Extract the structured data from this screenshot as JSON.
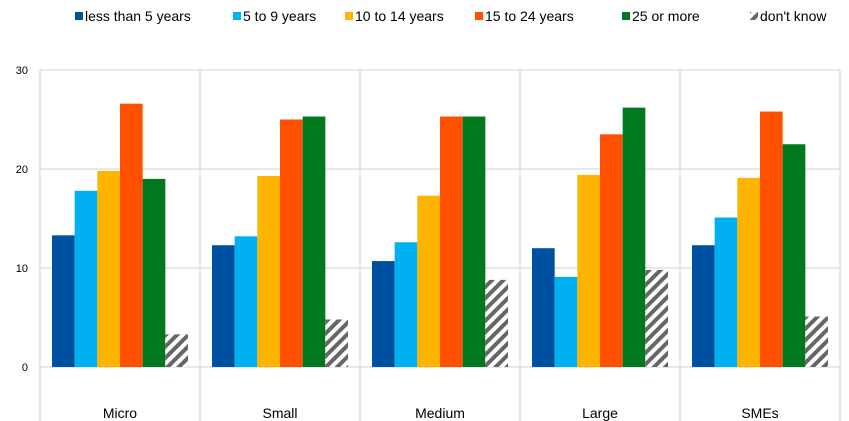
{
  "chart_data": {
    "type": "bar",
    "categories": [
      "Micro",
      "Small",
      "Medium",
      "Large",
      "SMEs"
    ],
    "series": [
      {
        "name": "less than 5 years",
        "color": "#0050A0",
        "values": [
          13.3,
          12.3,
          10.7,
          12.0,
          12.3
        ]
      },
      {
        "name": "5 to 9 years",
        "color": "#00B0F0",
        "values": [
          17.8,
          13.2,
          12.6,
          9.1,
          15.1
        ]
      },
      {
        "name": "10 to 14 years",
        "color": "#FFB400",
        "values": [
          19.8,
          19.3,
          17.3,
          19.4,
          19.1
        ]
      },
      {
        "name": "15 to 24 years",
        "color": "#FF5000",
        "values": [
          26.6,
          25.0,
          25.3,
          23.5,
          25.8
        ]
      },
      {
        "name": "25 or more",
        "color": "#007820",
        "values": [
          19.0,
          25.3,
          25.3,
          26.2,
          22.5
        ]
      },
      {
        "name": "don't know",
        "color": "#666666",
        "pattern": "diagonal-hatch",
        "values": [
          3.3,
          4.8,
          8.8,
          9.8,
          5.1
        ]
      }
    ],
    "title": "",
    "xlabel": "",
    "ylabel": "",
    "ylim": [
      0,
      30
    ],
    "yticks": [
      0,
      10,
      20,
      30
    ],
    "grid": "horizontal",
    "legend_position": "top"
  }
}
